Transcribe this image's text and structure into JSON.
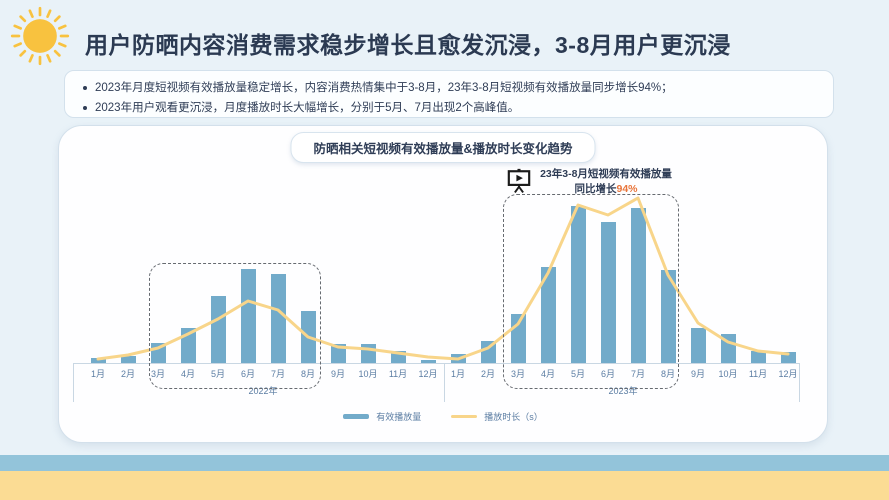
{
  "header": {
    "title": "用户防晒内容消费需求稳步增长且愈发沉浸，3-8月用户更沉浸"
  },
  "summary": {
    "bullets": [
      "2023年月度短视频有效播放量稳定增长，内容消费热情集中于3-8月，23年3-8月短视频有效播放量同步增长94%；",
      "2023年用户观看更沉浸，月度播放时长大幅增长，分别于5月、7月出现2个高峰值。"
    ]
  },
  "chart": {
    "title": "防晒相关短视频有效播放量&播放时长变化趋势",
    "annotation": {
      "icon": "projector-screen-play-icon",
      "line1": "23年3-8月短视频有效播放量",
      "line2_prefix": "同比增长",
      "line2_value": "94%"
    },
    "legend": [
      {
        "label": "有效播放量",
        "type": "bar"
      },
      {
        "label": "播放时长（s）",
        "type": "line"
      }
    ]
  },
  "chart_data": {
    "type": "combo_bar_line",
    "title": "防晒相关短视频有效播放量&播放时长变化趋势",
    "year_groups": [
      "2022年",
      "2023年"
    ],
    "categories_per_year": [
      "1月",
      "2月",
      "3月",
      "4月",
      "5月",
      "6月",
      "7月",
      "8月",
      "9月",
      "10月",
      "11月",
      "12月"
    ],
    "series": [
      {
        "name": "有效播放量",
        "type": "bar",
        "values_2022": [
          5,
          7,
          20,
          35,
          67,
          94,
          89,
          52,
          19,
          19,
          12,
          3
        ],
        "values_2023": [
          9,
          22,
          49,
          96,
          157,
          141,
          155,
          93,
          35,
          29,
          12,
          11
        ]
      },
      {
        "name": "播放时长（s）",
        "type": "line",
        "values_2022": [
          4,
          8,
          15,
          29,
          44,
          62,
          53,
          26,
          16,
          14,
          10,
          6
        ],
        "values_2023": [
          4,
          15,
          39,
          90,
          158,
          148,
          165,
          88,
          40,
          21,
          12,
          9
        ]
      }
    ],
    "value_scale": "relative index (no y-axis shown)",
    "highlighted_months": "3月-8月 in each year (dashed boxes)",
    "legend_position": "bottom-center",
    "grid": false,
    "y_axis_visible": false
  },
  "colors": {
    "bar": "#72abca",
    "line": "#f8d58a",
    "orange": "#e8743a",
    "stripe_blue": "#93c4da",
    "stripe_yellow": "#fbdc94"
  }
}
